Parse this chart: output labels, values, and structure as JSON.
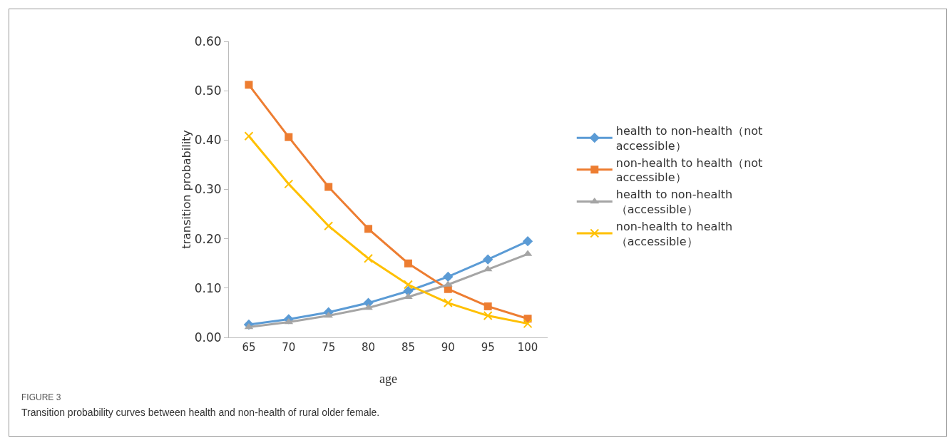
{
  "chart_data": {
    "type": "line",
    "xlabel": "age",
    "ylabel": "transition probability",
    "categories": [
      "65",
      "70",
      "75",
      "80",
      "85",
      "90",
      "95",
      "100"
    ],
    "series": [
      {
        "name": "health to non-health（not accessible）",
        "color": "#5b9bd5",
        "marker": "diamond",
        "values": [
          0.026,
          0.037,
          0.051,
          0.07,
          0.094,
          0.123,
          0.158,
          0.195
        ]
      },
      {
        "name": "non-health to health（not accessible）",
        "color": "#ed7d31",
        "marker": "square",
        "values": [
          0.512,
          0.406,
          0.305,
          0.22,
          0.15,
          0.098,
          0.063,
          0.038
        ]
      },
      {
        "name": "health to non-health（accessible）",
        "color": "#a5a5a5",
        "marker": "triangle",
        "values": [
          0.021,
          0.031,
          0.044,
          0.06,
          0.082,
          0.107,
          0.138,
          0.169
        ]
      },
      {
        "name": "non-health to health（accessible）",
        "color": "#ffc000",
        "marker": "cross",
        "values": [
          0.408,
          0.311,
          0.226,
          0.16,
          0.107,
          0.07,
          0.044,
          0.028
        ]
      }
    ],
    "ylim": [
      0,
      0.6
    ],
    "yticks": [
      {
        "value": 0,
        "label": "0.00"
      },
      {
        "value": 0.1,
        "label": "0.10"
      },
      {
        "value": 0.2,
        "label": "0.20"
      },
      {
        "value": 0.3,
        "label": "0.30"
      },
      {
        "value": 0.4,
        "label": "0.40"
      },
      {
        "value": 0.5,
        "label": "0.50"
      },
      {
        "value": 0.6,
        "label": "0.60"
      }
    ],
    "grid": false,
    "legend": "right",
    "line_style": "solid",
    "annotations": [
      "FIGURE 3",
      "Transition probability curves between health and non-health of rural older female."
    ]
  }
}
